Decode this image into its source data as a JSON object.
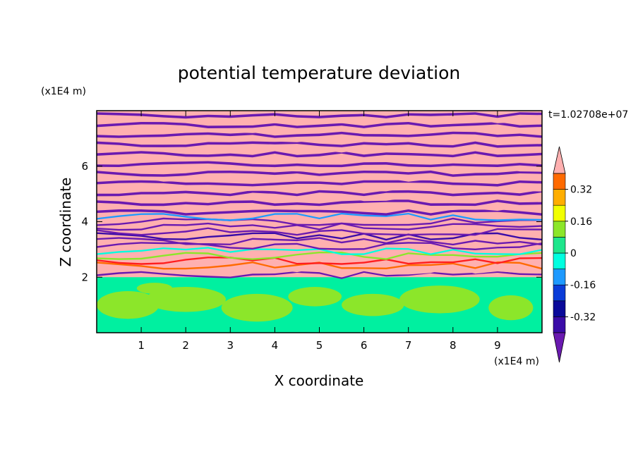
{
  "chart_data": {
    "type": "heatmap",
    "title": "potential temperature deviation",
    "xlabel": "X coordinate",
    "ylabel": "Z coordinate",
    "x_unit": "(x1E4 m)",
    "y_unit": "(x1E4 m)",
    "time_label": "t=1.02708e+07",
    "xlim": [
      0,
      10
    ],
    "ylim": [
      0,
      8
    ],
    "x_ticks": [
      "1",
      "2",
      "3",
      "4",
      "5",
      "6",
      "7",
      "8",
      "9"
    ],
    "x_tick_values": [
      1,
      2,
      3,
      4,
      5,
      6,
      7,
      8,
      9
    ],
    "y_ticks": [
      "2",
      "4",
      "6"
    ],
    "y_tick_values": [
      2,
      4,
      6
    ],
    "colorbar": {
      "levels": [
        -0.4,
        -0.32,
        -0.24,
        -0.16,
        -0.08,
        0,
        0.08,
        0.16,
        0.24,
        0.32,
        0.4
      ],
      "colors": [
        "#5a0fa0",
        "#3a0ca8",
        "#0a0a9a",
        "#0a3cd8",
        "#1e9aff",
        "#00ffe0",
        "#1ee68c",
        "#8ce62a",
        "#f2ff00",
        "#ffae00",
        "#ff6a00",
        "#ff1e1e",
        "#ffb0b0"
      ],
      "under_color": "#6a1ab0",
      "over_color": "#ffb0b0",
      "tick_labels": [
        "0.32",
        "0.16",
        "0",
        "-0.16",
        "-0.32"
      ],
      "tick_values": [
        0.32,
        0.16,
        0,
        -0.16,
        -0.32
      ]
    }
  }
}
